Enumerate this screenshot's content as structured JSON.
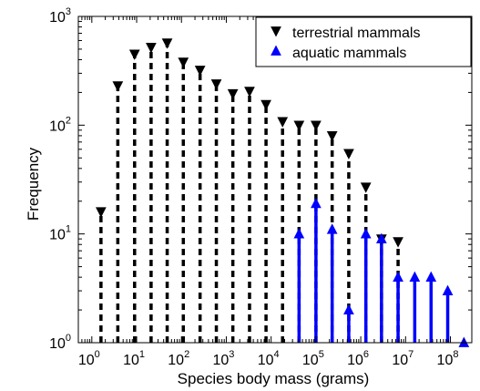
{
  "chart_data": {
    "type": "stem",
    "xlabel": "Species body mass (grams)",
    "ylabel": "Frequency",
    "x_scale": "log",
    "y_scale": "log",
    "xlim": [
      0.5,
      300000000
    ],
    "ylim": [
      1,
      1000
    ],
    "x_ticks": [
      {
        "base": "10",
        "exp": "0",
        "value": 1
      },
      {
        "base": "10",
        "exp": "1",
        "value": 10
      },
      {
        "base": "10",
        "exp": "2",
        "value": 100
      },
      {
        "base": "10",
        "exp": "3",
        "value": 1000
      },
      {
        "base": "10",
        "exp": "4",
        "value": 10000
      },
      {
        "base": "10",
        "exp": "5",
        "value": 100000
      },
      {
        "base": "10",
        "exp": "6",
        "value": 1000000
      },
      {
        "base": "10",
        "exp": "7",
        "value": 10000000
      },
      {
        "base": "10",
        "exp": "8",
        "value": 100000000
      }
    ],
    "y_ticks": [
      {
        "base": "10",
        "exp": "0",
        "value": 1
      },
      {
        "base": "10",
        "exp": "1",
        "value": 10
      },
      {
        "base": "10",
        "exp": "2",
        "value": 100
      },
      {
        "base": "10",
        "exp": "3",
        "value": 1000
      }
    ],
    "legend_position": "top-right",
    "series": [
      {
        "name": "terrestrial mammals",
        "color": "#000000",
        "line_style": "dashed",
        "marker": "triangle-down",
        "points": [
          {
            "x": 1.6,
            "y": 16
          },
          {
            "x": 3.8,
            "y": 230
          },
          {
            "x": 9,
            "y": 450
          },
          {
            "x": 21,
            "y": 520
          },
          {
            "x": 48,
            "y": 570
          },
          {
            "x": 110,
            "y": 380
          },
          {
            "x": 260,
            "y": 320
          },
          {
            "x": 600,
            "y": 240
          },
          {
            "x": 1400,
            "y": 195
          },
          {
            "x": 3300,
            "y": 205
          },
          {
            "x": 7700,
            "y": 155
          },
          {
            "x": 18000,
            "y": 108
          },
          {
            "x": 42000,
            "y": 100
          },
          {
            "x": 100000,
            "y": 100
          },
          {
            "x": 230000,
            "y": 80
          },
          {
            "x": 540000,
            "y": 55
          },
          {
            "x": 1300000,
            "y": 27
          },
          {
            "x": 2900000,
            "y": 9
          },
          {
            "x": 6800000,
            "y": 8.5
          }
        ]
      },
      {
        "name": "aquatic mammals",
        "color": "#0000ff",
        "line_style": "solid",
        "marker": "triangle-up",
        "points": [
          {
            "x": 42000,
            "y": 10
          },
          {
            "x": 100000,
            "y": 19
          },
          {
            "x": 230000,
            "y": 11
          },
          {
            "x": 540000,
            "y": 2
          },
          {
            "x": 1300000,
            "y": 10
          },
          {
            "x": 2900000,
            "y": 9
          },
          {
            "x": 6800000,
            "y": 4
          },
          {
            "x": 16000000,
            "y": 4
          },
          {
            "x": 37000000,
            "y": 4
          },
          {
            "x": 87000000,
            "y": 3
          },
          {
            "x": 200000000,
            "y": 1
          }
        ]
      }
    ]
  }
}
